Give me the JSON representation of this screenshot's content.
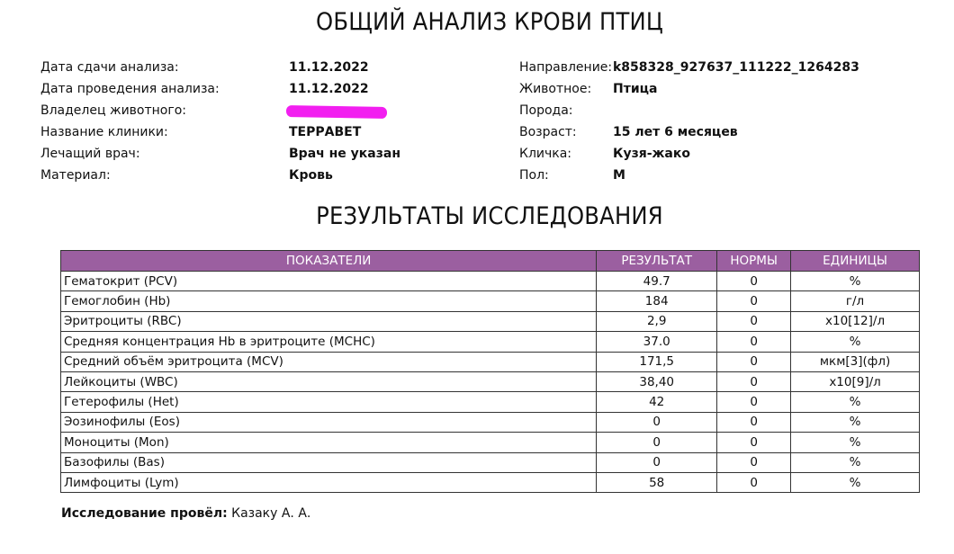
{
  "title": "ОБЩИЙ АНАЛИЗ КРОВИ ПТИЦ",
  "info_left": [
    {
      "label": "Дата сдачи анализа:",
      "value": "11.12.2022"
    },
    {
      "label": "Дата проведения анализа:",
      "value": "11.12.2022"
    },
    {
      "label": "Владелец животного:",
      "value": ""
    },
    {
      "label": "Название клиники:",
      "value": "ТЕРРАВЕТ"
    },
    {
      "label": "Лечащий врач:",
      "value": "Врач не указан"
    },
    {
      "label": "Материал:",
      "value": "Кровь"
    }
  ],
  "info_right": [
    {
      "label": "Направление:",
      "value": "k858328_927637_111222_1264283"
    },
    {
      "label": "Животное:",
      "value": "Птица"
    },
    {
      "label": "Порода:",
      "value": ""
    },
    {
      "label": "Возраст:",
      "value": "15 лет 6 месяцев"
    },
    {
      "label": "Кличка:",
      "value": "Кузя-жако"
    },
    {
      "label": "Пол:",
      "value": "М"
    }
  ],
  "results_title": "РЕЗУЛЬТАТЫ ИССЛЕДОВАНИЯ",
  "table": {
    "headers": [
      "ПОКАЗАТЕЛИ",
      "РЕЗУЛЬТАТ",
      "НОРМЫ",
      "ЕДИНИЦЫ"
    ],
    "header_color": "#9b5fa0",
    "rows": [
      [
        "Гематокрит (PCV)",
        "49.7",
        "0",
        "%"
      ],
      [
        "Гемоглобин (Hb)",
        "184",
        "0",
        "г/л"
      ],
      [
        "Эритроциты (RBC)",
        "2,9",
        "0",
        "x10[12]/л"
      ],
      [
        "Средняя концентрация Нb в эритроците (MCHC)",
        "37.0",
        "0",
        "%"
      ],
      [
        "Средний объём эритроцита (MCV)",
        "171,5",
        "0",
        "мкм[3](фл)"
      ],
      [
        "Лейкоциты (WBC)",
        "38,40",
        "0",
        "x10[9]/л"
      ],
      [
        "Гетерофилы (Het)",
        "42",
        "0",
        "%"
      ],
      [
        "Эозинофилы (Eos)",
        "0",
        "0",
        "%"
      ],
      [
        "Моноциты (Mon)",
        "0",
        "0",
        "%"
      ],
      [
        "Базофилы (Bas)",
        "0",
        "0",
        "%"
      ],
      [
        "Лимфоциты (Lym)",
        "58",
        "0",
        "%"
      ]
    ]
  },
  "footer": {
    "label": "Исследование провёл:",
    "value": "Казаку А. А."
  }
}
